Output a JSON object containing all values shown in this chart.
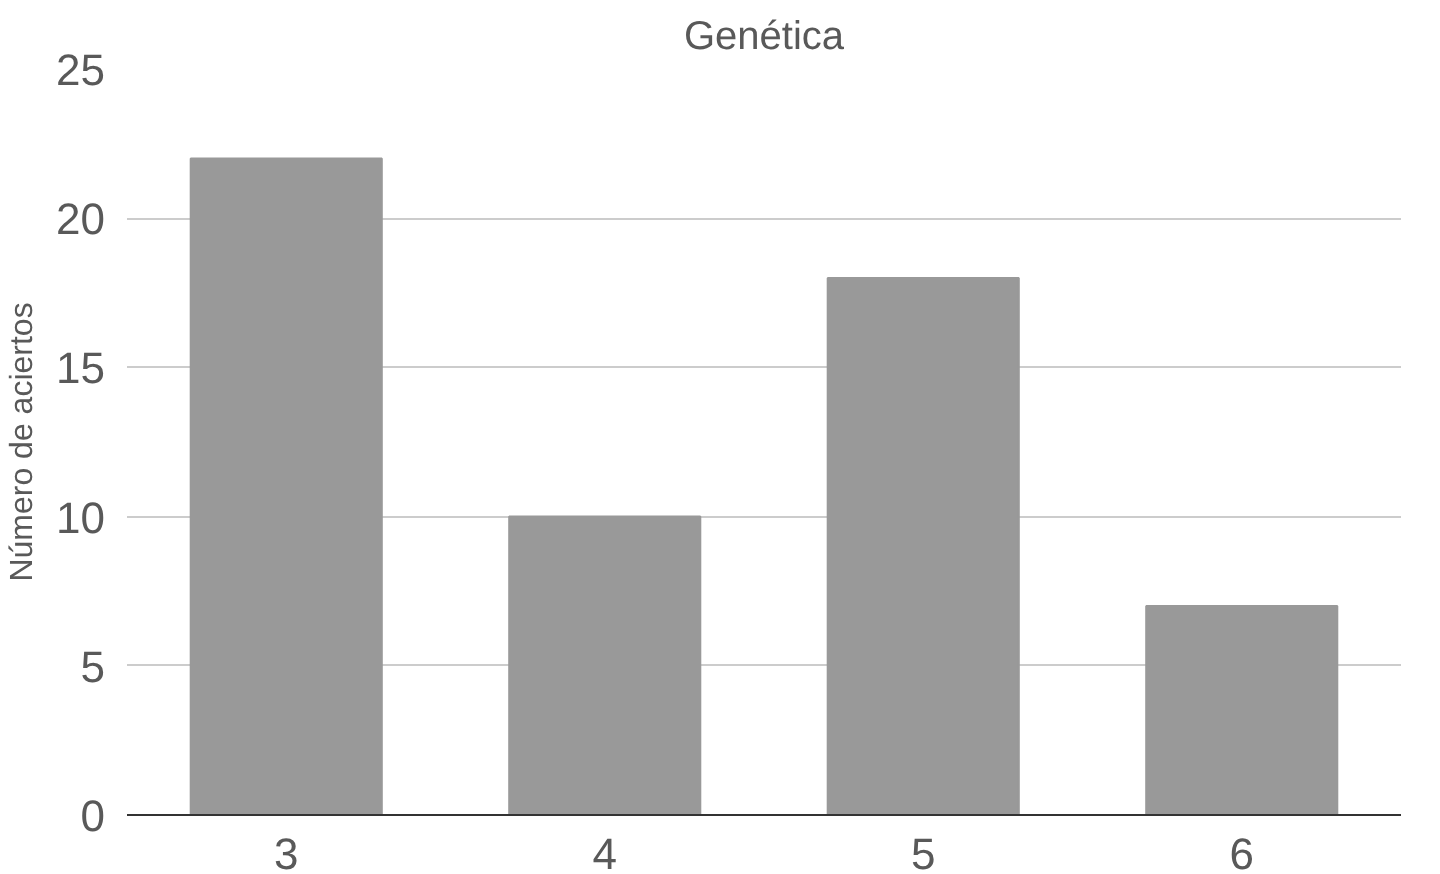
{
  "chart_data": {
    "type": "bar",
    "title": "Genética",
    "ylabel": "Número de aciertos",
    "categories": [
      "3",
      "4",
      "5",
      "6"
    ],
    "values": [
      22,
      10,
      18,
      7
    ],
    "color": "#999999",
    "ylim": [
      0,
      25
    ],
    "yticks": [
      0,
      5,
      10,
      15,
      20,
      25
    ],
    "grid": "y"
  }
}
